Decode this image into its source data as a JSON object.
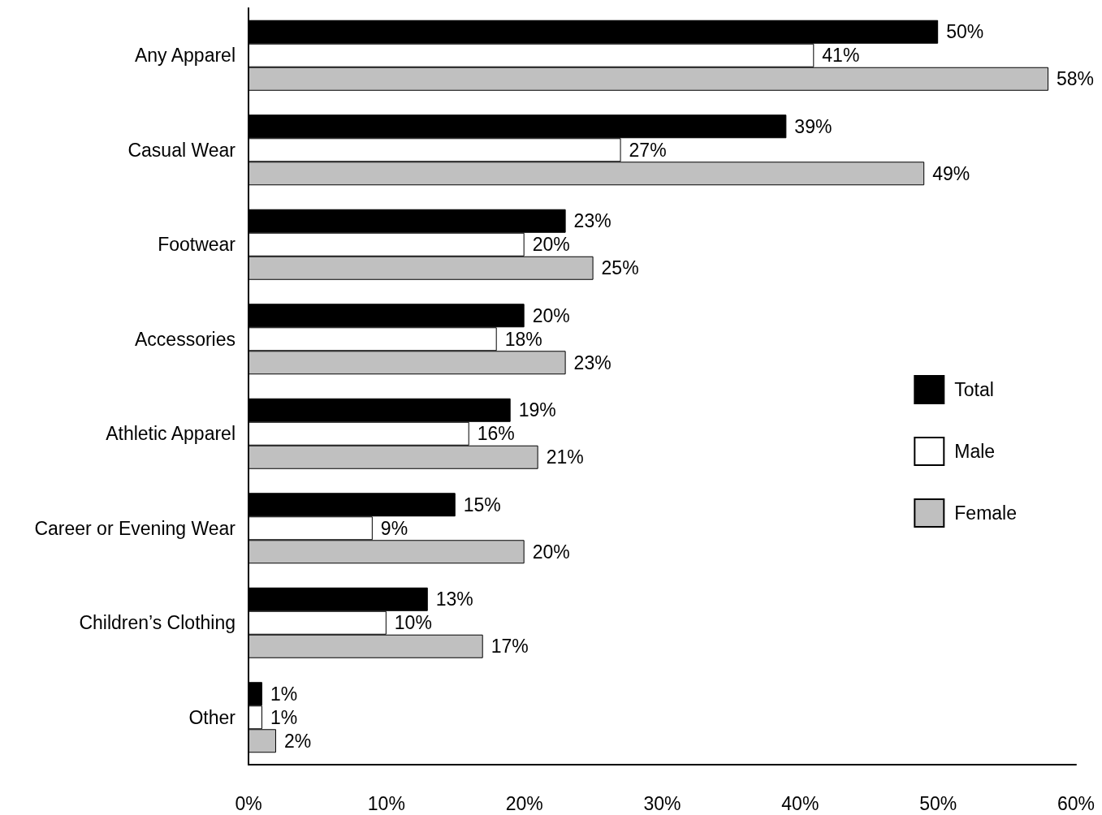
{
  "chart_data": {
    "type": "bar",
    "orientation": "horizontal",
    "categories": [
      "Any Apparel",
      "Casual Wear",
      "Footwear",
      "Accessories",
      "Athletic Apparel",
      "Career or Evening Wear",
      "Children’s Clothing",
      "Other"
    ],
    "series": [
      {
        "name": "Total",
        "color": "#000000",
        "values": [
          50,
          39,
          23,
          20,
          19,
          15,
          13,
          1
        ],
        "value_labels": [
          "50%",
          "39%",
          "23%",
          "20%",
          "19%",
          "15%",
          "13%",
          "1%"
        ]
      },
      {
        "name": "Male",
        "color": "#ffffff",
        "values": [
          41,
          27,
          20,
          18,
          16,
          9,
          10,
          1
        ],
        "value_labels": [
          "41%",
          "27%",
          "20%",
          "18%",
          "16%",
          "9%",
          "10%",
          "1%"
        ]
      },
      {
        "name": "Female",
        "color": "#c0c0c0",
        "values": [
          58,
          49,
          25,
          23,
          21,
          20,
          17,
          2
        ],
        "value_labels": [
          "58%",
          "49%",
          "25%",
          "23%",
          "21%",
          "20%",
          "17%",
          "2%"
        ]
      }
    ],
    "xlim": [
      0,
      60
    ],
    "xticks": [
      {
        "value": 0,
        "label": "0%"
      },
      {
        "value": 10,
        "label": "10%"
      },
      {
        "value": 20,
        "label": "20%"
      },
      {
        "value": 30,
        "label": "30%"
      },
      {
        "value": 40,
        "label": "40%"
      },
      {
        "value": 50,
        "label": "50%"
      },
      {
        "value": 60,
        "label": "60%"
      }
    ],
    "legend": "right",
    "grid": false
  }
}
